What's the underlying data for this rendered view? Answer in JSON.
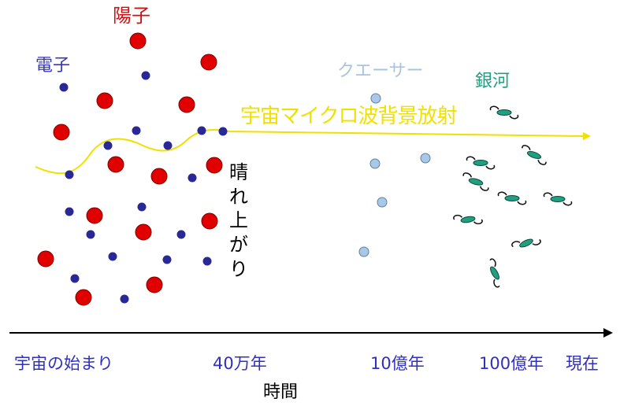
{
  "labels": {
    "proton": "陽子",
    "electron": "電子",
    "quasar": "クエーサー",
    "galaxy": "銀河",
    "cmb": "宇宙マイクロ波背景放射",
    "clear_up": "晴れ上がり",
    "time_axis": "時間"
  },
  "timeline_ticks": [
    "宇宙の始まり",
    "40万年",
    "10億年",
    "100億年",
    "現在"
  ],
  "colors": {
    "proton": "#e00000",
    "proton_label": "#d01010",
    "electron": "#282896",
    "electron_label": "#3838b0",
    "quasar": "#a8c8e8",
    "quasar_label": "#a8c4e0",
    "galaxy": "#20a080",
    "galaxy_label": "#20a080",
    "cmb": "#f0e000",
    "axis": "#000000",
    "tick_text": "#3030c0"
  }
}
